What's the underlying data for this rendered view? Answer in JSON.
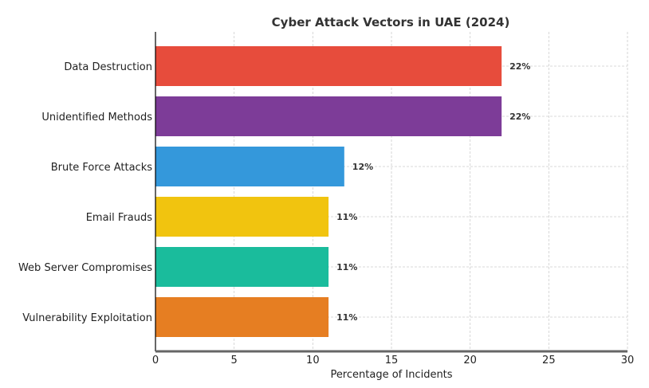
{
  "chart_data": {
    "type": "bar",
    "orientation": "horizontal",
    "title": "Cyber Attack Vectors in UAE (2024)",
    "xlabel": "Percentage of Incidents",
    "ylabel": "",
    "xlim": [
      0,
      30
    ],
    "xticks": [
      0,
      5,
      10,
      15,
      20,
      25,
      30
    ],
    "grid": true,
    "categories": [
      "Data Destruction",
      "Unidentified Methods",
      "Brute Force Attacks",
      "Email Frauds",
      "Web Server Compromises",
      "Vulnerability Exploitation"
    ],
    "values": [
      22,
      22,
      12,
      11,
      11,
      11
    ],
    "labels": [
      "22%",
      "22%",
      "12%",
      "11%",
      "11%",
      "11%"
    ],
    "colors": [
      "#e74c3c",
      "#7d3c98",
      "#3498db",
      "#f1c40f",
      "#1abc9c",
      "#e67e22"
    ]
  }
}
